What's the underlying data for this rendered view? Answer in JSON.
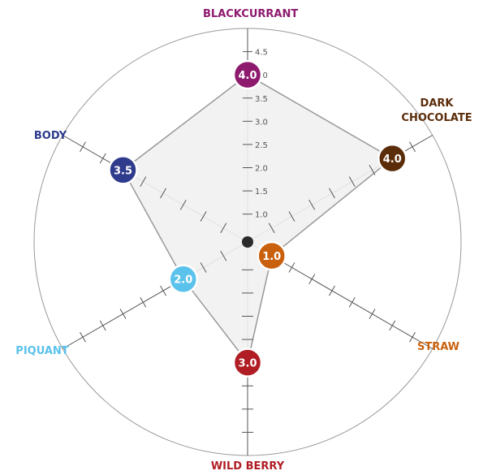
{
  "chart_data": {
    "type": "radar",
    "categories": [
      "BLACKCURRANT",
      "DARK CHOCOLATE",
      "STRAW",
      "WILD BERRY",
      "PIQUANT",
      "BODY"
    ],
    "series": [
      {
        "values": [
          4,
          4,
          1,
          3,
          2,
          3.5
        ],
        "value_labels": [
          "4.0",
          "4.0",
          "1.0",
          "3.0",
          "2.0",
          "3.5"
        ],
        "colors": [
          "#8e1a6e",
          "#5b2c0a",
          "#c9600e",
          "#b01d24",
          "#5bc2ec",
          "#2f3b8c"
        ]
      }
    ],
    "ylim": [
      0.4,
      5
    ],
    "yticks": [
      {
        "value": 1,
        "label": "1.0"
      },
      {
        "value": 1.5,
        "label": "1.5"
      },
      {
        "value": 2,
        "label": "2.0"
      },
      {
        "value": 2.5,
        "label": "2.5"
      },
      {
        "value": 3,
        "label": "3.0"
      },
      {
        "value": 3.5,
        "label": "3.5"
      },
      {
        "value": 4,
        "label": "4.0"
      },
      {
        "value": 4.5,
        "label": "4.5"
      }
    ]
  }
}
